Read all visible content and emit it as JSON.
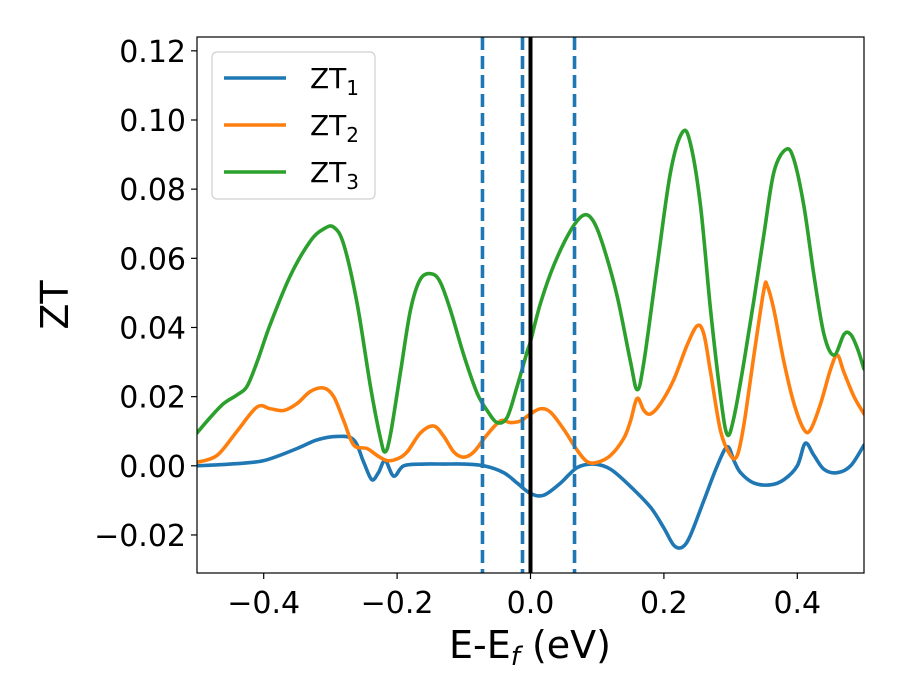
{
  "chart_data": {
    "type": "line",
    "xlabel": "E-E",
    "xlabel_sub": "f",
    "xlabel_unit": " (eV)",
    "ylabel": "ZT",
    "xlim": [
      -0.5,
      0.5
    ],
    "ylim": [
      -0.031,
      0.124
    ],
    "xticks": [
      -0.4,
      -0.2,
      0.0,
      0.2,
      0.4
    ],
    "xtick_labels": [
      "−0.4",
      "−0.2",
      "0.0",
      "0.2",
      "0.4"
    ],
    "yticks": [
      -0.02,
      0.0,
      0.02,
      0.04,
      0.06,
      0.08,
      0.1,
      0.12
    ],
    "ytick_labels": [
      "−0.02",
      "0.00",
      "0.02",
      "0.04",
      "0.06",
      "0.08",
      "0.10",
      "0.12"
    ],
    "grid": false,
    "legend_position": "top-left",
    "vlines": [
      {
        "x": 0.0,
        "style": "solid",
        "color": "#000000"
      },
      {
        "x": -0.072,
        "style": "dashed",
        "color": "#1f77b4"
      },
      {
        "x": -0.012,
        "style": "dashed",
        "color": "#1f77b4"
      },
      {
        "x": 0.066,
        "style": "dashed",
        "color": "#1f77b4"
      }
    ],
    "series": [
      {
        "name": "ZT",
        "name_sub": "1",
        "color": "#1f77b4",
        "points": [
          [
            -0.5,
            0.0
          ],
          [
            -0.45,
            0.0005
          ],
          [
            -0.4,
            0.0015
          ],
          [
            -0.35,
            0.005
          ],
          [
            -0.32,
            0.0075
          ],
          [
            -0.29,
            0.0085
          ],
          [
            -0.265,
            0.0075
          ],
          [
            -0.25,
            0.001
          ],
          [
            -0.238,
            -0.004
          ],
          [
            -0.228,
            -0.002
          ],
          [
            -0.218,
            0.0015
          ],
          [
            -0.205,
            -0.003
          ],
          [
            -0.19,
            0.0
          ],
          [
            -0.16,
            0.0005
          ],
          [
            -0.13,
            0.0005
          ],
          [
            -0.1,
            0.0005
          ],
          [
            -0.07,
            0.0
          ],
          [
            -0.04,
            -0.002
          ],
          [
            -0.02,
            -0.005
          ],
          [
            0.0,
            -0.008
          ],
          [
            0.02,
            -0.0085
          ],
          [
            0.045,
            -0.005
          ],
          [
            0.07,
            -0.0005
          ],
          [
            0.095,
            0.0005
          ],
          [
            0.12,
            -0.001
          ],
          [
            0.15,
            -0.006
          ],
          [
            0.18,
            -0.012
          ],
          [
            0.2,
            -0.018
          ],
          [
            0.215,
            -0.023
          ],
          [
            0.228,
            -0.0235
          ],
          [
            0.24,
            -0.02
          ],
          [
            0.26,
            -0.01
          ],
          [
            0.28,
            0.0
          ],
          [
            0.295,
            0.0055
          ],
          [
            0.305,
            0.0015
          ],
          [
            0.315,
            -0.002
          ],
          [
            0.335,
            -0.005
          ],
          [
            0.36,
            -0.0055
          ],
          [
            0.38,
            -0.004
          ],
          [
            0.4,
            0.0
          ],
          [
            0.412,
            0.0065
          ],
          [
            0.425,
            0.003
          ],
          [
            0.44,
            -0.001
          ],
          [
            0.46,
            -0.002
          ],
          [
            0.48,
            0.0
          ],
          [
            0.5,
            0.006
          ]
        ]
      },
      {
        "name": "ZT",
        "name_sub": "2",
        "color": "#ff7f0e",
        "points": [
          [
            -0.5,
            0.001
          ],
          [
            -0.47,
            0.003
          ],
          [
            -0.44,
            0.01
          ],
          [
            -0.41,
            0.017
          ],
          [
            -0.39,
            0.0165
          ],
          [
            -0.37,
            0.016
          ],
          [
            -0.35,
            0.018
          ],
          [
            -0.33,
            0.0215
          ],
          [
            -0.31,
            0.0225
          ],
          [
            -0.295,
            0.02
          ],
          [
            -0.28,
            0.013
          ],
          [
            -0.265,
            0.006
          ],
          [
            -0.245,
            0.005
          ],
          [
            -0.23,
            0.003
          ],
          [
            -0.215,
            0.0015
          ],
          [
            -0.2,
            0.002
          ],
          [
            -0.185,
            0.004
          ],
          [
            -0.165,
            0.0095
          ],
          [
            -0.145,
            0.0115
          ],
          [
            -0.13,
            0.0085
          ],
          [
            -0.115,
            0.004
          ],
          [
            -0.1,
            0.0025
          ],
          [
            -0.085,
            0.004
          ],
          [
            -0.065,
            0.009
          ],
          [
            -0.045,
            0.013
          ],
          [
            -0.03,
            0.0125
          ],
          [
            -0.015,
            0.013
          ],
          [
            0.0,
            0.015
          ],
          [
            0.015,
            0.0165
          ],
          [
            0.03,
            0.0155
          ],
          [
            0.05,
            0.0105
          ],
          [
            0.07,
            0.0045
          ],
          [
            0.085,
            0.0012
          ],
          [
            0.1,
            0.001
          ],
          [
            0.12,
            0.003
          ],
          [
            0.14,
            0.008
          ],
          [
            0.15,
            0.013
          ],
          [
            0.16,
            0.0195
          ],
          [
            0.17,
            0.016
          ],
          [
            0.18,
            0.015
          ],
          [
            0.195,
            0.018
          ],
          [
            0.215,
            0.025
          ],
          [
            0.235,
            0.035
          ],
          [
            0.25,
            0.0405
          ],
          [
            0.26,
            0.038
          ],
          [
            0.27,
            0.027
          ],
          [
            0.285,
            0.01
          ],
          [
            0.3,
            0.003
          ],
          [
            0.31,
            0.003
          ],
          [
            0.32,
            0.012
          ],
          [
            0.335,
            0.032
          ],
          [
            0.35,
            0.051
          ],
          [
            0.355,
            0.052
          ],
          [
            0.365,
            0.045
          ],
          [
            0.38,
            0.03
          ],
          [
            0.395,
            0.018
          ],
          [
            0.41,
            0.0105
          ],
          [
            0.42,
            0.0105
          ],
          [
            0.435,
            0.018
          ],
          [
            0.45,
            0.028
          ],
          [
            0.46,
            0.032
          ],
          [
            0.47,
            0.027
          ],
          [
            0.485,
            0.02
          ],
          [
            0.5,
            0.015
          ]
        ]
      },
      {
        "name": "ZT",
        "name_sub": "3",
        "color": "#2ca02c",
        "points": [
          [
            -0.5,
            0.0095
          ],
          [
            -0.48,
            0.014
          ],
          [
            -0.46,
            0.018
          ],
          [
            -0.44,
            0.0205
          ],
          [
            -0.425,
            0.023
          ],
          [
            -0.41,
            0.03
          ],
          [
            -0.39,
            0.041
          ],
          [
            -0.36,
            0.055
          ],
          [
            -0.33,
            0.065
          ],
          [
            -0.31,
            0.0685
          ],
          [
            -0.295,
            0.069
          ],
          [
            -0.28,
            0.064
          ],
          [
            -0.26,
            0.047
          ],
          [
            -0.24,
            0.023
          ],
          [
            -0.225,
            0.008
          ],
          [
            -0.218,
            0.004
          ],
          [
            -0.21,
            0.009
          ],
          [
            -0.195,
            0.027
          ],
          [
            -0.18,
            0.045
          ],
          [
            -0.165,
            0.054
          ],
          [
            -0.148,
            0.0555
          ],
          [
            -0.135,
            0.053
          ],
          [
            -0.12,
            0.045
          ],
          [
            -0.1,
            0.032
          ],
          [
            -0.08,
            0.021
          ],
          [
            -0.065,
            0.016
          ],
          [
            -0.05,
            0.0125
          ],
          [
            -0.035,
            0.014
          ],
          [
            -0.02,
            0.023
          ],
          [
            -0.005,
            0.033
          ],
          [
            0.0,
            0.036
          ],
          [
            0.015,
            0.047
          ],
          [
            0.035,
            0.058
          ],
          [
            0.06,
            0.068
          ],
          [
            0.08,
            0.0725
          ],
          [
            0.095,
            0.0705
          ],
          [
            0.11,
            0.063
          ],
          [
            0.13,
            0.049
          ],
          [
            0.15,
            0.03
          ],
          [
            0.16,
            0.022
          ],
          [
            0.17,
            0.03
          ],
          [
            0.19,
            0.058
          ],
          [
            0.21,
            0.085
          ],
          [
            0.228,
            0.0965
          ],
          [
            0.24,
            0.093
          ],
          [
            0.255,
            0.075
          ],
          [
            0.27,
            0.045
          ],
          [
            0.285,
            0.02
          ],
          [
            0.295,
            0.009
          ],
          [
            0.305,
            0.014
          ],
          [
            0.32,
            0.03
          ],
          [
            0.335,
            0.048
          ],
          [
            0.35,
            0.067
          ],
          [
            0.365,
            0.085
          ],
          [
            0.383,
            0.0915
          ],
          [
            0.395,
            0.0885
          ],
          [
            0.41,
            0.075
          ],
          [
            0.425,
            0.055
          ],
          [
            0.44,
            0.038
          ],
          [
            0.455,
            0.032
          ],
          [
            0.47,
            0.038
          ],
          [
            0.48,
            0.038
          ],
          [
            0.49,
            0.034
          ],
          [
            0.5,
            0.028
          ]
        ]
      }
    ]
  }
}
